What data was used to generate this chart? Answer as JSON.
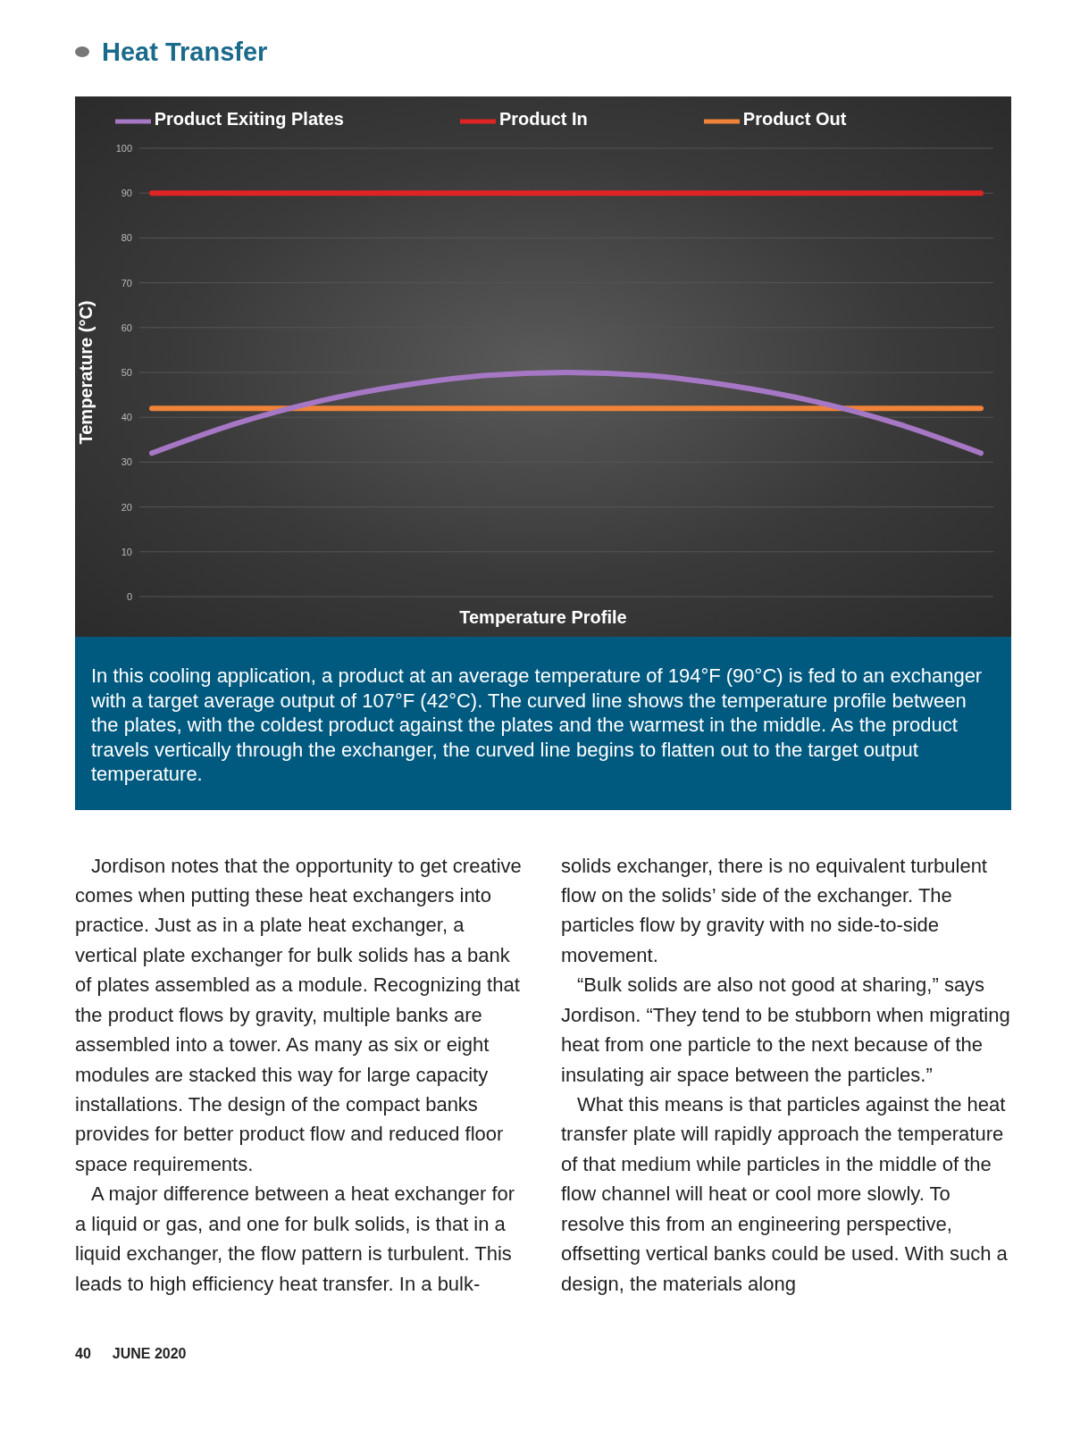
{
  "chart_data": {
    "type": "line",
    "title": "Temperature Profile",
    "subtitle": "Heat Transfer",
    "ylabel": "Temperature (°C)",
    "categories": [
      null,
      null,
      null,
      null,
      null,
      null,
      null,
      null,
      null,
      null,
      null
    ],
    "series": [
      {
        "name": "Product In",
        "color": "#e02424",
        "values": [
          90,
          90,
          90,
          90,
          90,
          90,
          90,
          90,
          90,
          90,
          90
        ]
      },
      {
        "name": "Product Out",
        "color": "#f0833a",
        "values": [
          42,
          42,
          42,
          42,
          42,
          42,
          42,
          42,
          42,
          42,
          42
        ]
      },
      {
        "name": "Product Exiting Plates",
        "color": "#a677c4",
        "values": [
          32,
          38.5,
          43.5,
          47,
          49.3,
          50,
          49.3,
          47,
          43.5,
          38.5,
          32
        ]
      }
    ],
    "ylim": [
      0,
      100
    ],
    "yticks": [
      0,
      10,
      20,
      30,
      40,
      50,
      60,
      70,
      80,
      90,
      100
    ],
    "grid": "y",
    "legend": "top",
    "marker": "none",
    "line_style": "solid",
    "tick_labels": "y",
    "annotations": [
      "In this cooling application, a product at an average temperature of 194°F (90°C) is fed to an exchanger with a target average output of 107°F (42°C). The curved line shows the temperature profile between the plates, with the coldest product against the plates and the warmest in the middle. As the product travels vertically through the exchanger, the curved line begins to flatten out to the target output temperature.",
      "Jordison notes that the opportunity to get creative comes when putting these heat exchangers into practice. Just as in a plate heat exchanger, a vertical plate exchanger for bulk solids has a bank of plates assembled as a module. Recognizing that the product flows by gravity, multiple banks are assembled into a tower. As many as six or eight modules are stacked this way for large capacity installations. The design of the compact banks provides for better product flow and reduced floor space requirements.",
      "A major difference between a heat exchanger for a liquid or gas, and one for bulk solids, is that in a liquid exchanger, the flow pattern is turbulent. This leads to high efficiency heat transfer. In a bulk-solids exchanger, there is no equivalent turbulent flow on the solids’ side of the exchanger. The particles flow by gravity with no side-to-side movement.",
      "“Bulk solids are also not good at sharing,” says Jordison. “They tend to be stubborn when migrating heat from one particle to the next because of the insulating air space between the particles.”",
      "What this means is that particles against the heat transfer plate will rapidly approach the temperature of that medium while particles in the middle of the flow channel will heat or cool more slowly. To resolve this from an engineering perspective, offsetting vertical banks could be used. With such a design, the materials along",
      "40",
      "JUNE 2020"
    ]
  }
}
